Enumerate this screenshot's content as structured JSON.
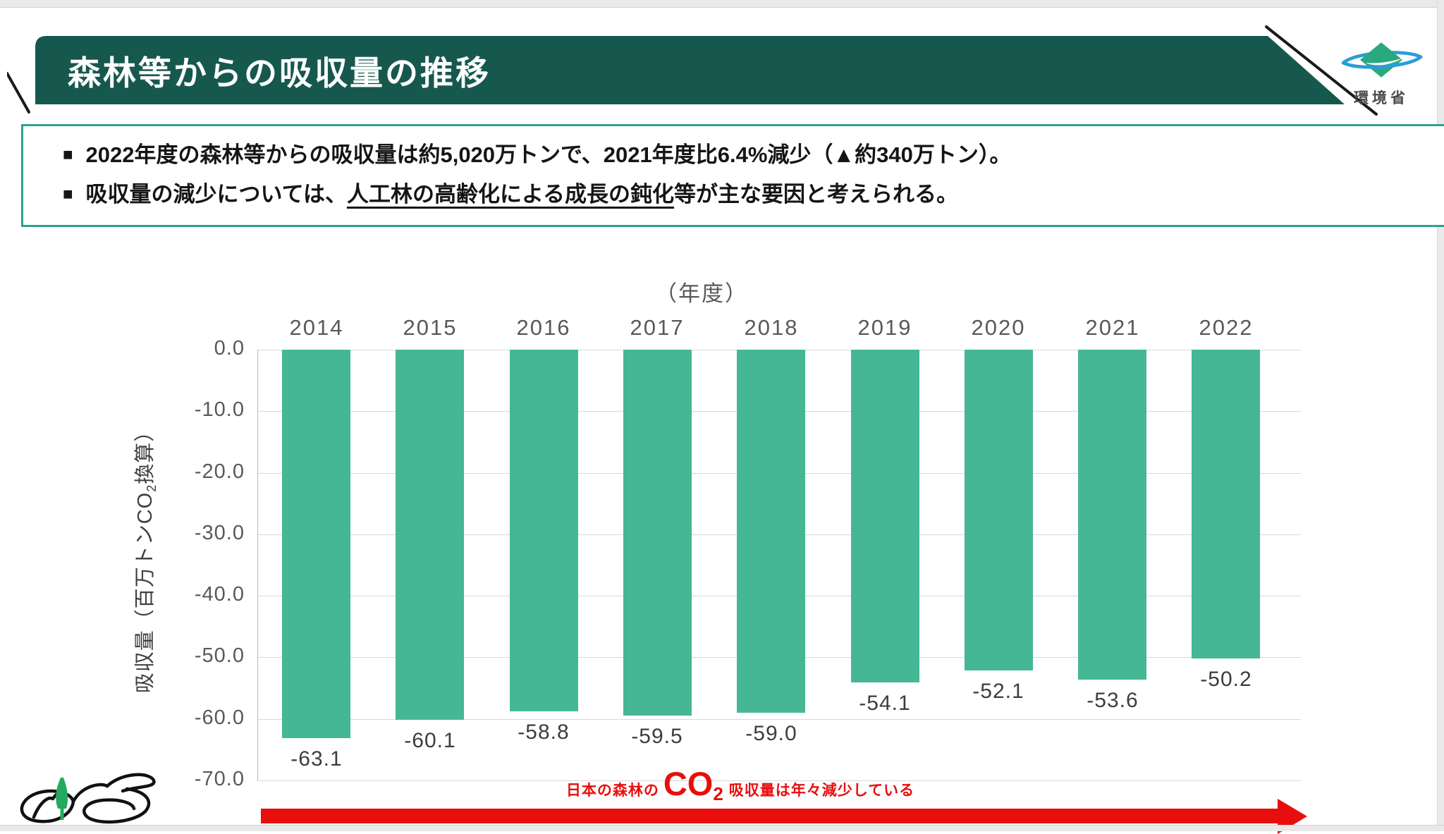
{
  "header": {
    "title": "森林等からの吸収量の推移"
  },
  "ministry_logo": {
    "label": "環境省"
  },
  "summary_box": {
    "bullet_marker": "■",
    "bullet1": "2022年度の森林等からの吸収量は約5,020万トンで、2021年度比6.4%減少（▲約340万トン）。",
    "bullet2_pre": "吸収量の減少については、",
    "bullet2_underlined": "人工林の高齢化による成長の鈍化",
    "bullet2_post": "等が主な要因と考えられる。"
  },
  "chart_data": {
    "type": "bar",
    "title": "（年度）",
    "categories": [
      "2014",
      "2015",
      "2016",
      "2017",
      "2018",
      "2019",
      "2020",
      "2021",
      "2022"
    ],
    "values": [
      -63.1,
      -60.1,
      -58.8,
      -59.5,
      -59.0,
      -54.1,
      -52.1,
      -53.6,
      -50.2
    ],
    "value_labels": [
      "-63.1",
      "-60.1",
      "-58.8",
      "-59.5",
      "-59.0",
      "-54.1",
      "-52.1",
      "-53.6",
      "-50.2"
    ],
    "xlabel": "年度",
    "ylabel": "吸収量（百万トンCO2換算）",
    "ylabel_pre": "吸収量（百万トンCO",
    "ylabel_sub": "2",
    "ylabel_post": "換算）",
    "ylim": [
      -70,
      0
    ],
    "yticks": [
      "0.0",
      "-10.0",
      "-20.0",
      "-30.0",
      "-40.0",
      "-50.0",
      "-60.0",
      "-70.0"
    ],
    "grid": true,
    "legend": null,
    "bar_color": "#45b795"
  },
  "arrow_note": {
    "pre": "日本の森林の",
    "co": "CO",
    "sub": "2",
    "post": "吸収量は年々減少している"
  },
  "colors": {
    "banner": "#17584e",
    "box_border": "#2da18e",
    "bar": "#45b795",
    "red": "#e90e0e",
    "moe_green": "#2aa87e",
    "moe_blue": "#2b9cd8"
  }
}
